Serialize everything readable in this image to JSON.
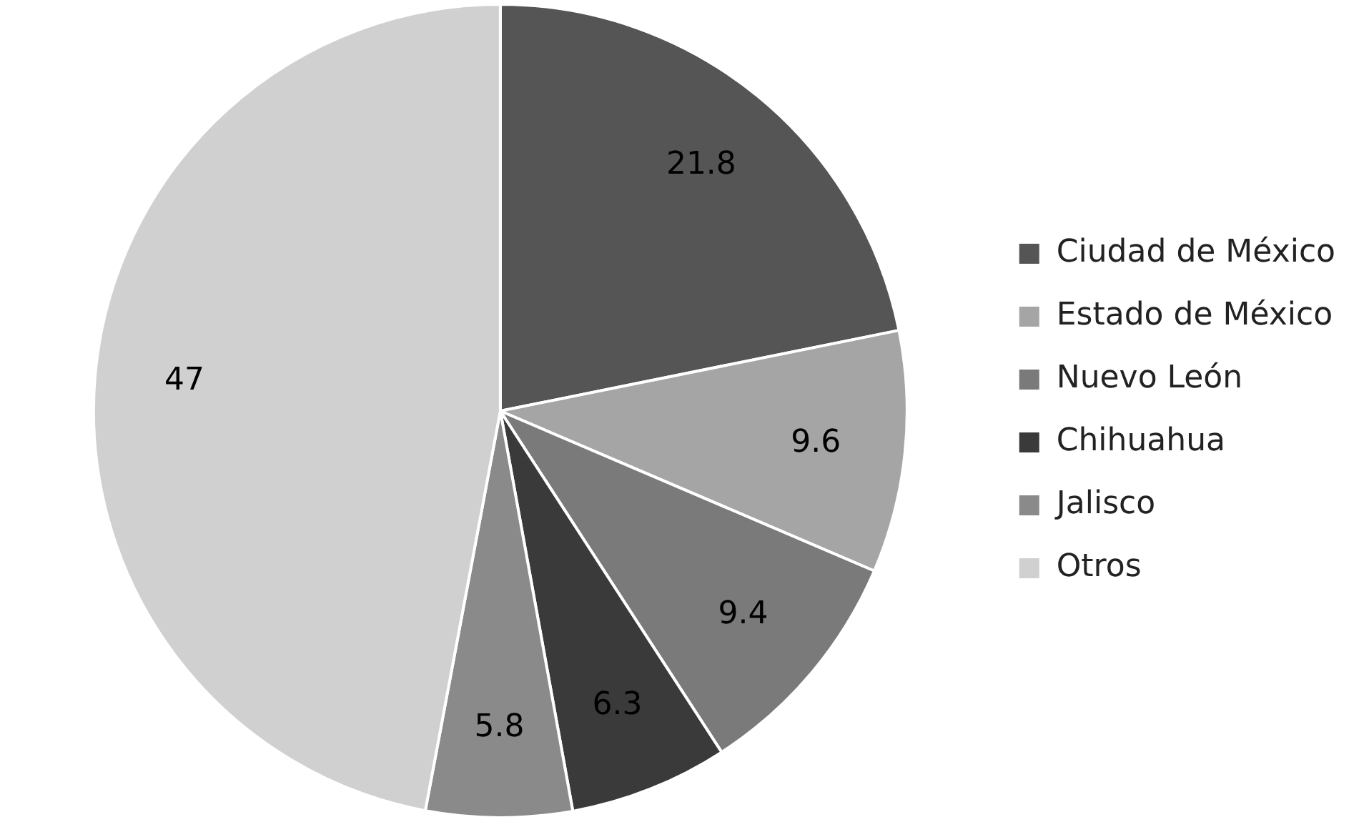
{
  "chart_data": {
    "type": "pie",
    "categories": [
      "Ciudad de México",
      "Estado de México",
      "Nuevo León",
      "Chihuahua",
      "Jalisco",
      "Otros"
    ],
    "values": [
      21.8,
      9.6,
      9.4,
      6.3,
      5.8,
      47
    ],
    "colors": [
      "#555555",
      "#a5a5a5",
      "#7a7a7a",
      "#3a3a3a",
      "#8a8a8a",
      "#d0d0d0"
    ],
    "data_labels": true,
    "legend": "right"
  }
}
